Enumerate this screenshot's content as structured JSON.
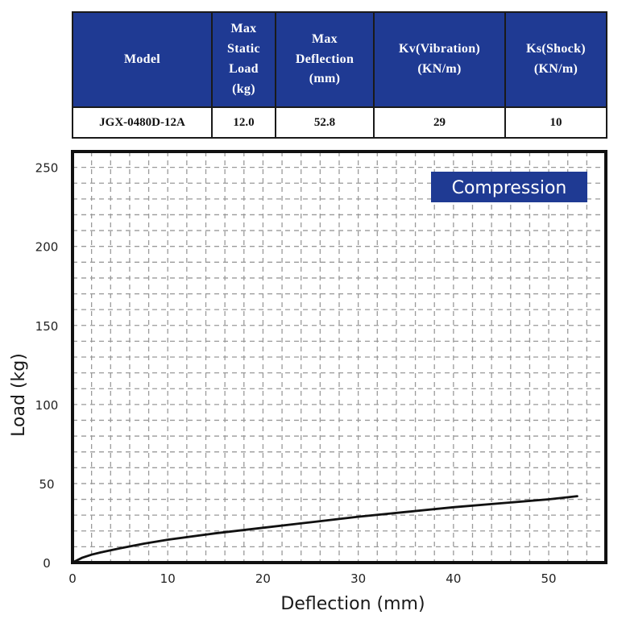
{
  "table": {
    "headers": [
      "Model",
      "Max Static Load (kg)",
      "Max Deflection (mm)",
      "Kv(Vibration) (KN/m)",
      "Ks(Shock) (KN/m)"
    ],
    "header_lines": [
      [
        "Model"
      ],
      [
        "Max",
        "Static",
        "Load",
        "(kg)"
      ],
      [
        "Max",
        "Deflection",
        "(mm)"
      ],
      [
        "Kv(Vibration)",
        "(KN/m)"
      ],
      [
        "Ks(Shock)",
        "(KN/m)"
      ]
    ],
    "rows": [
      [
        "JGX-0480D-12A",
        "12.0",
        "52.8",
        "29",
        "10"
      ]
    ],
    "header_bg": "#1f3a93"
  },
  "chart_data": {
    "type": "line",
    "title": "Compression",
    "xlabel": "Deflection (mm)",
    "ylabel": "Load (kg)",
    "xlim": [
      0,
      56
    ],
    "ylim": [
      0,
      260
    ],
    "x_ticks": [
      0,
      10,
      20,
      30,
      40,
      50
    ],
    "y_ticks": [
      0,
      50,
      100,
      150,
      200,
      250
    ],
    "grid": true,
    "series": [
      {
        "x": [
          0,
          1,
          2,
          3,
          5,
          7.5,
          10,
          15,
          20,
          25,
          30,
          35,
          40,
          45,
          50,
          53
        ],
        "y": [
          0,
          3,
          5,
          6.5,
          9,
          12,
          14.5,
          18.5,
          22,
          25.5,
          29,
          32,
          35,
          37.5,
          40,
          42
        ],
        "color": "#111111"
      }
    ],
    "badge_color": "#1f3a93"
  }
}
